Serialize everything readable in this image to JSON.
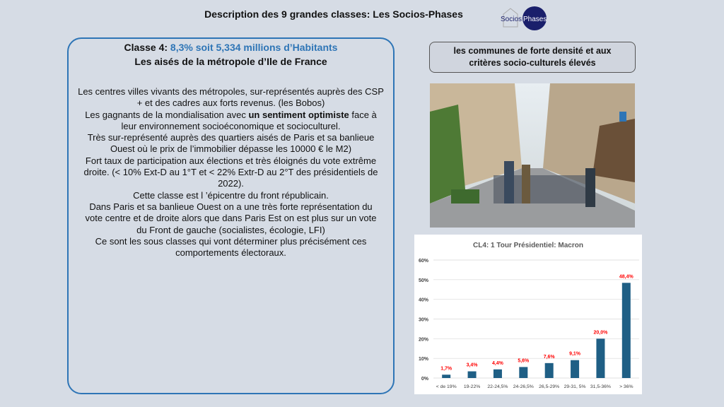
{
  "header": {
    "title": "Description  des 9 grandes  classes:  Les Socios-Phases",
    "logo_text": "SociosPhases"
  },
  "left": {
    "class_label": "Classe 4: ",
    "class_stats": "8,3% soit  5,334 millions  d’Habitants",
    "subtitle": "Les aisés de la métropole d’Ile de France",
    "lines": [
      "Les centres villes vivants des métropoles, sur-représentés auprès des CSP",
      "+ et des cadres aux forts revenus. (les Bobos)",
      [
        "Les gagnants de la mondialisation avec ",
        "un sentiment optimiste",
        " face à"
      ],
      "leur environnement socioéconomique et socioculturel.",
      "Très sur-représenté auprès des quartiers aisés de Paris et sa banlieue",
      "Ouest où le prix de l’immobilier  dépasse les 10000 € le M2)",
      "Fort taux de participation aux élections et très éloignés du vote extrême",
      "droite. (< 10%  Ext-D au 1°T et < 22% Extr-D au 2°T des présidentiels de",
      "2022).",
      "Cette classe est l ’épicentre du front républicain.",
      "Dans Paris et sa banlieue Ouest on a une très forte représentation du",
      "vote centre et de droite alors que dans  Paris Est on est plus sur un vote",
      "du Front de gauche (socialistes, écologie, LFI)",
      "Ce sont les sous classes qui vont déterminer plus précisément ces",
      "comportements électoraux."
    ]
  },
  "right": {
    "tag_line1": "les communes de forte densité et aux",
    "tag_line2": "critères socio-culturels élevés"
  },
  "colors": {
    "accent": "#2e75b6",
    "bar": "#1f5f85",
    "label": "#ff0000",
    "background": "#d6dce5"
  },
  "chart_data": {
    "type": "bar",
    "title": "CL4: 1 Tour Présidentiel: Macron",
    "categories": [
      "< de 19%",
      "19-22%",
      "22-24,5%",
      "24-26,5%",
      "26,5-29%",
      "29-31, 5%",
      "31,5-36%",
      "> 36%"
    ],
    "values": [
      1.7,
      3.4,
      4.4,
      5.6,
      7.6,
      9.1,
      20.0,
      48.4
    ],
    "data_labels": [
      "1,7%",
      "3,4%",
      "4,4%",
      "5,6%",
      "7,6%",
      "9,1%",
      "20,0%",
      "48,4%"
    ],
    "yticks": [
      "0%",
      "10%",
      "20%",
      "30%",
      "40%",
      "50%",
      "60%"
    ],
    "ylim": [
      0,
      60
    ],
    "grid": true,
    "xlabel": "",
    "ylabel": ""
  }
}
